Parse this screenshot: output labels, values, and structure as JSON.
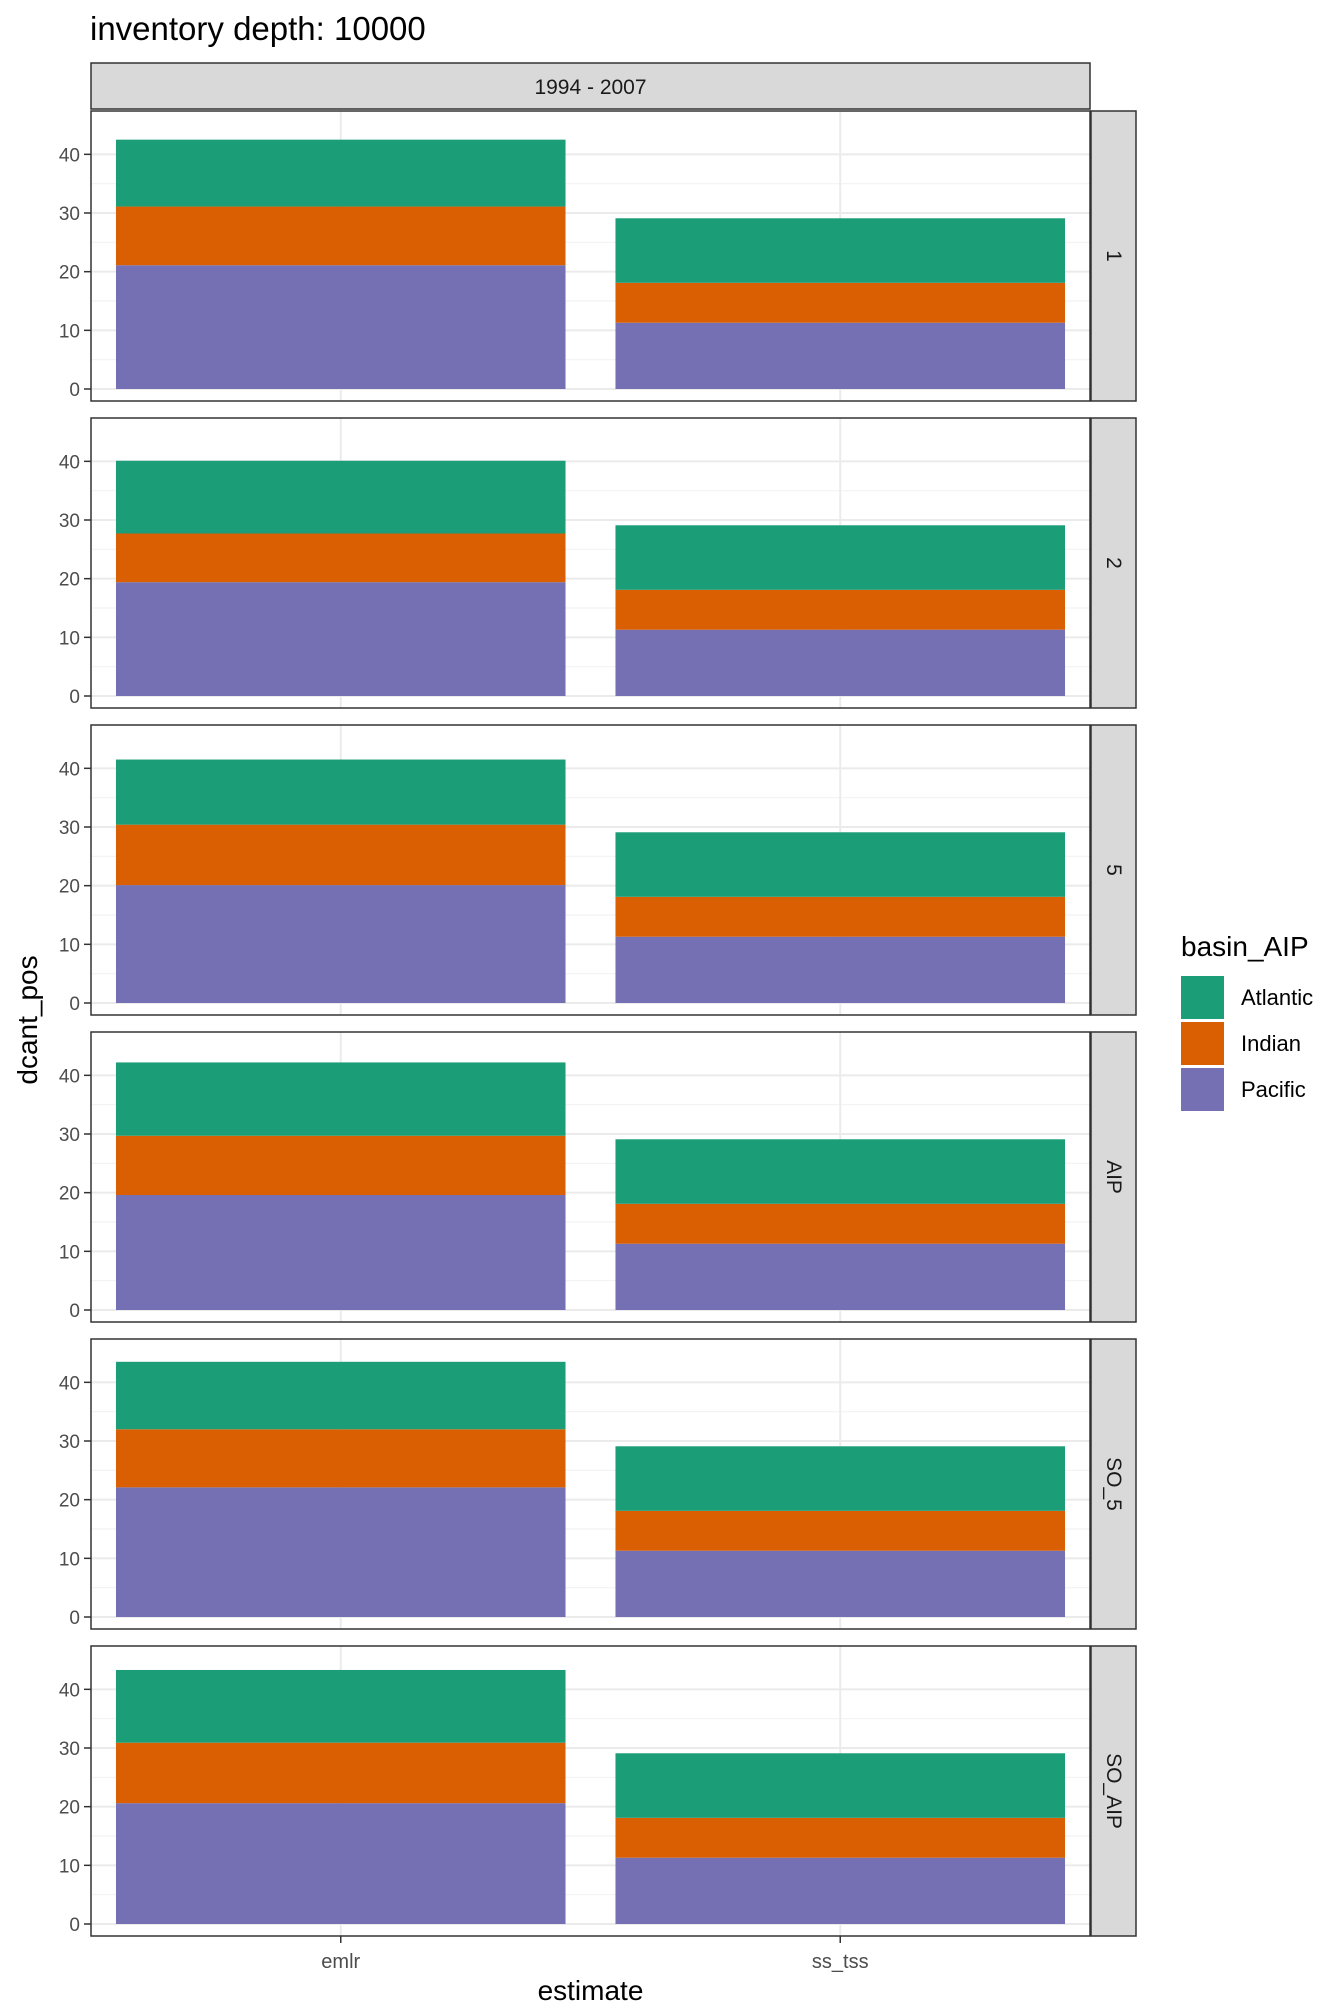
{
  "chart_data": {
    "type": "bar",
    "stacked": true,
    "title": "inventory depth: 10000",
    "column_facet_label": "1994 - 2007",
    "xlabel": "estimate",
    "ylabel": "dcant_pos",
    "categories": [
      "emlr",
      "ss_tss"
    ],
    "ylim": [
      0,
      45
    ],
    "y_ticks": [
      "0",
      "10",
      "20",
      "30",
      "40"
    ],
    "grid": true,
    "legend": {
      "title": "basin_AIP",
      "position": "right",
      "entries": [
        "Atlantic",
        "Indian",
        "Pacific"
      ]
    },
    "colors": {
      "Atlantic": "#1b9e77",
      "Indian": "#d95f02",
      "Pacific": "#7570b3"
    },
    "panels": [
      {
        "label": "1",
        "series": [
          {
            "name": "Pacific",
            "values": [
              21.1,
              11.3
            ]
          },
          {
            "name": "Indian",
            "values": [
              10.0,
              6.8
            ]
          },
          {
            "name": "Atlantic",
            "values": [
              11.4,
              11.0
            ]
          }
        ]
      },
      {
        "label": "2",
        "series": [
          {
            "name": "Pacific",
            "values": [
              19.4,
              11.3
            ]
          },
          {
            "name": "Indian",
            "values": [
              8.3,
              6.8
            ]
          },
          {
            "name": "Atlantic",
            "values": [
              12.4,
              11.0
            ]
          }
        ]
      },
      {
        "label": "5",
        "series": [
          {
            "name": "Pacific",
            "values": [
              20.1,
              11.3
            ]
          },
          {
            "name": "Indian",
            "values": [
              10.3,
              6.8
            ]
          },
          {
            "name": "Atlantic",
            "values": [
              11.1,
              11.0
            ]
          }
        ]
      },
      {
        "label": "AIP",
        "series": [
          {
            "name": "Pacific",
            "values": [
              19.6,
              11.3
            ]
          },
          {
            "name": "Indian",
            "values": [
              10.1,
              6.8
            ]
          },
          {
            "name": "Atlantic",
            "values": [
              12.5,
              11.0
            ]
          }
        ]
      },
      {
        "label": "SO_5",
        "series": [
          {
            "name": "Pacific",
            "values": [
              22.1,
              11.3
            ]
          },
          {
            "name": "Indian",
            "values": [
              9.9,
              6.8
            ]
          },
          {
            "name": "Atlantic",
            "values": [
              11.5,
              11.0
            ]
          }
        ]
      },
      {
        "label": "SO_AIP",
        "series": [
          {
            "name": "Pacific",
            "values": [
              20.6,
              11.3
            ]
          },
          {
            "name": "Indian",
            "values": [
              10.3,
              6.8
            ]
          },
          {
            "name": "Atlantic",
            "values": [
              12.4,
              11.0
            ]
          }
        ]
      }
    ]
  }
}
